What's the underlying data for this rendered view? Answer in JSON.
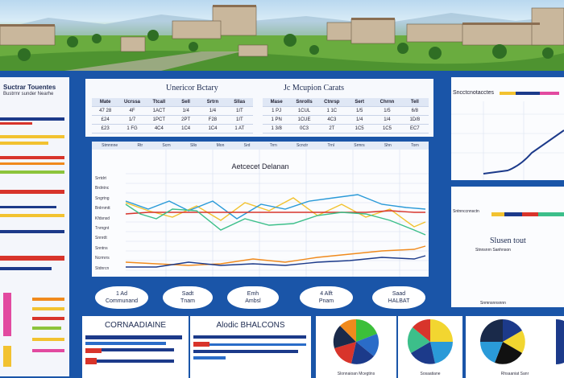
{
  "left_panel": {
    "title": "Suctrar Touentes",
    "subtitle": "Bustrmr sunder Nearhe"
  },
  "top_tables": {
    "table_a_title": "Unericor Bctary",
    "table_b_title": "Jc Mcupion Carats",
    "table_a": {
      "headers": [
        "Mate",
        "Ucrssa",
        "Ttcall",
        "Sell",
        "Srtrn",
        "Sllas"
      ],
      "rows": [
        [
          "47 28",
          "4F",
          "1ACT",
          "1/4",
          "1/4",
          "1IT"
        ],
        [
          "£24",
          "1/7",
          "1PCT",
          "2PT",
          "F28",
          "1IT"
        ],
        [
          "£23",
          "1 FG",
          "4C4",
          "1C4",
          "1C4",
          "1 AT"
        ]
      ]
    },
    "table_b": {
      "headers": [
        "Mase",
        "Snrolls",
        "Ctnrsp",
        "Sert",
        "Chrnn",
        "Tell"
      ],
      "rows": [
        [
          "1 PJ",
          "1CUL",
          "1 1C",
          "1/5",
          "1/5",
          "6/8"
        ],
        [
          "1 PN",
          "1CUE",
          "4C3",
          "1/4",
          "1/4",
          "1D/8"
        ],
        [
          "1 3/8",
          "0C3",
          "2T",
          "1C5",
          "1C5",
          "EC7"
        ]
      ]
    }
  },
  "line_chart": {
    "title": "Aetcecet Delanan",
    "head_labels": [
      "Stmnnne",
      "Rtr",
      "Scrn",
      "Sllo",
      "Mon",
      "Srd",
      "Trrn",
      "Scnctr",
      "Trnl",
      "Srmrs",
      "Shn",
      "Torn"
    ],
    "row_labels": [
      "Srrtdrt",
      "Brdntnc",
      "Sngrtng",
      "Bnlrnmtt",
      "Kfdsnsd",
      "Tnrngnt",
      "Snnrdt",
      "Snntns",
      "Ncrmrrs",
      "Stdnrcn"
    ],
    "series_colors": [
      "#f2c230",
      "#2a9ad8",
      "#d8342b",
      "#3cbf8a",
      "#f08a1d",
      "#1c3a8a"
    ]
  },
  "badges": [
    {
      "line1": "1 Ad",
      "line2": "Communand"
    },
    {
      "line1": "Sadt",
      "line2": "Tnam"
    },
    {
      "line1": "Emh",
      "line2": "Ambsl"
    },
    {
      "line1": "4 Alft",
      "line2": "Pnam"
    },
    {
      "line1": "Saad",
      "line2": "HALBAT"
    }
  ],
  "right_panel": {
    "top_label": "Sncctcnotacctes",
    "mid_label": "Sntnnccnnsctn",
    "big_label": "Slusen tout",
    "small_label": "Stnnsnrn Sanhnson",
    "bottom_label": "Snmnsnnsnnn"
  },
  "bottom": {
    "box1_title": "CORNAADIAINE",
    "box2_title": "Alodic BHALCONS",
    "pie_captions": [
      "Slonnaioan Mcegtins",
      "Sosaatiane",
      "Rhsaaniat Sanr"
    ]
  }
}
